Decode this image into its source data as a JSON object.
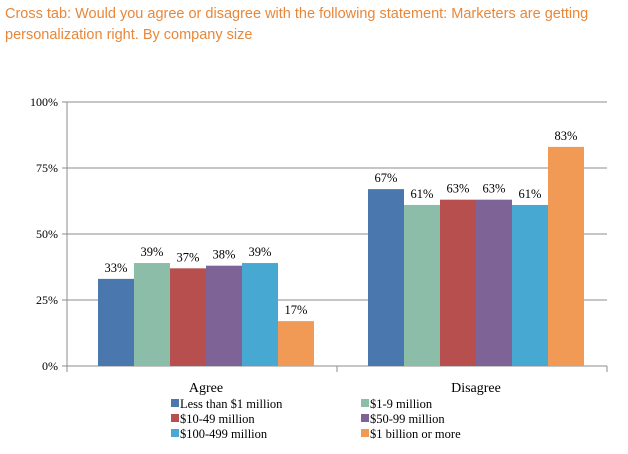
{
  "title": "Cross tab: Would you agree or disagree with the following statement:  Marketers are getting personalization right. By company size",
  "chart_data": {
    "type": "bar",
    "categories": [
      "Agree",
      "Disagree"
    ],
    "ylim": [
      0,
      100
    ],
    "yticks": [
      0,
      25,
      50,
      75,
      100
    ],
    "ytick_labels": [
      "0%",
      "25%",
      "50%",
      "75%",
      "100%"
    ],
    "grid": true,
    "legend_position": "bottom",
    "series": [
      {
        "name": "Less than $1 million",
        "color": "#4a78ae",
        "values": [
          33,
          67
        ],
        "labels": [
          "33%",
          "67%"
        ]
      },
      {
        "name": "$1-9 million",
        "color": "#8bbda8",
        "values": [
          39,
          61
        ],
        "labels": [
          "39%",
          "61%"
        ]
      },
      {
        "name": "$10-49 million",
        "color": "#b84f4f",
        "values": [
          37,
          63
        ],
        "labels": [
          "37%",
          "63%"
        ]
      },
      {
        "name": "$50-99 million",
        "color": "#7e6496",
        "values": [
          38,
          63
        ],
        "labels": [
          "38%",
          "63%"
        ]
      },
      {
        "name": "$100-499 million",
        "color": "#47a8d2",
        "values": [
          39,
          61
        ],
        "labels": [
          "39%",
          "61%"
        ]
      },
      {
        "name": "$1 billion or more",
        "color": "#f09a55",
        "values": [
          17,
          83
        ],
        "labels": [
          "17%",
          "83%"
        ]
      }
    ]
  }
}
